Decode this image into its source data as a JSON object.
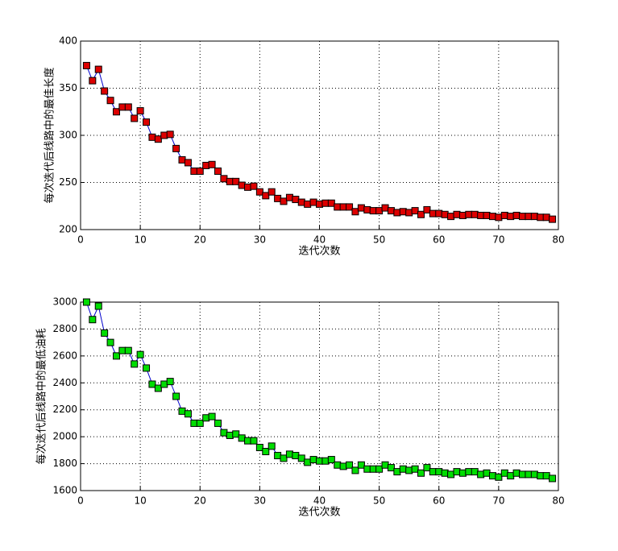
{
  "chart_data": [
    {
      "type": "line",
      "xlabel": "迭代次数",
      "ylabel": "每次迭代后线路中的最佳长度",
      "marker": "square",
      "grid": true,
      "x": [
        1,
        2,
        3,
        4,
        5,
        6,
        7,
        8,
        9,
        10,
        11,
        12,
        13,
        14,
        15,
        16,
        17,
        18,
        19,
        20,
        21,
        22,
        23,
        24,
        25,
        26,
        27,
        28,
        29,
        30,
        31,
        32,
        33,
        34,
        35,
        36,
        37,
        38,
        39,
        40,
        41,
        42,
        43,
        44,
        45,
        46,
        47,
        48,
        49,
        50,
        51,
        52,
        53,
        54,
        55,
        56,
        57,
        58,
        59,
        60,
        61,
        62,
        63,
        64,
        65,
        66,
        67,
        68,
        69,
        70,
        71,
        72,
        73,
        74,
        75,
        76,
        77,
        78,
        79
      ],
      "xlim": [
        0,
        80
      ],
      "xticks": [
        0,
        10,
        20,
        30,
        40,
        50,
        60,
        70,
        80
      ],
      "ylim": [
        200,
        400
      ],
      "yticks": [
        200,
        250,
        300,
        350,
        400
      ],
      "series": [
        {
          "color": "#dd0000",
          "line_color": "#0000cc",
          "values": [
            374,
            358,
            370,
            347,
            337,
            325,
            330,
            330,
            318,
            326,
            314,
            298,
            296,
            300,
            301,
            286,
            274,
            271,
            262,
            262,
            268,
            269,
            262,
            254,
            251,
            251,
            247,
            245,
            246,
            240,
            236,
            240,
            233,
            230,
            234,
            232,
            229,
            227,
            229,
            227,
            228,
            228,
            224,
            224,
            224,
            219,
            223,
            221,
            220,
            220,
            223,
            220,
            218,
            219,
            218,
            220,
            216,
            221,
            217,
            217,
            216,
            214,
            216,
            215,
            216,
            216,
            215,
            215,
            214,
            213,
            215,
            214,
            215,
            214,
            214,
            214,
            213,
            213,
            211
          ]
        }
      ]
    },
    {
      "type": "line",
      "xlabel": "迭代次数",
      "ylabel": "每次迭代后线路中的最低油耗",
      "marker": "square",
      "grid": true,
      "x": [
        1,
        2,
        3,
        4,
        5,
        6,
        7,
        8,
        9,
        10,
        11,
        12,
        13,
        14,
        15,
        16,
        17,
        18,
        19,
        20,
        21,
        22,
        23,
        24,
        25,
        26,
        27,
        28,
        29,
        30,
        31,
        32,
        33,
        34,
        35,
        36,
        37,
        38,
        39,
        40,
        41,
        42,
        43,
        44,
        45,
        46,
        47,
        48,
        49,
        50,
        51,
        52,
        53,
        54,
        55,
        56,
        57,
        58,
        59,
        60,
        61,
        62,
        63,
        64,
        65,
        66,
        67,
        68,
        69,
        70,
        71,
        72,
        73,
        74,
        75,
        76,
        77,
        78,
        79
      ],
      "xlim": [
        0,
        80
      ],
      "xticks": [
        0,
        10,
        20,
        30,
        40,
        50,
        60,
        70,
        80
      ],
      "ylim": [
        1600,
        3000
      ],
      "yticks": [
        1600,
        1800,
        2000,
        2200,
        2400,
        2600,
        2800,
        3000
      ],
      "series": [
        {
          "color": "#00dd00",
          "line_color": "#0000cc",
          "values": [
            3000,
            2870,
            2970,
            2770,
            2700,
            2600,
            2640,
            2640,
            2540,
            2610,
            2510,
            2390,
            2360,
            2390,
            2410,
            2300,
            2190,
            2170,
            2100,
            2100,
            2140,
            2150,
            2100,
            2030,
            2010,
            2020,
            1990,
            1970,
            1970,
            1920,
            1890,
            1930,
            1860,
            1840,
            1870,
            1860,
            1840,
            1810,
            1830,
            1820,
            1820,
            1830,
            1790,
            1780,
            1790,
            1750,
            1790,
            1760,
            1760,
            1760,
            1790,
            1770,
            1740,
            1760,
            1750,
            1760,
            1730,
            1770,
            1740,
            1740,
            1730,
            1720,
            1740,
            1730,
            1740,
            1740,
            1720,
            1730,
            1710,
            1700,
            1730,
            1710,
            1730,
            1720,
            1720,
            1720,
            1710,
            1710,
            1690
          ]
        }
      ]
    }
  ]
}
